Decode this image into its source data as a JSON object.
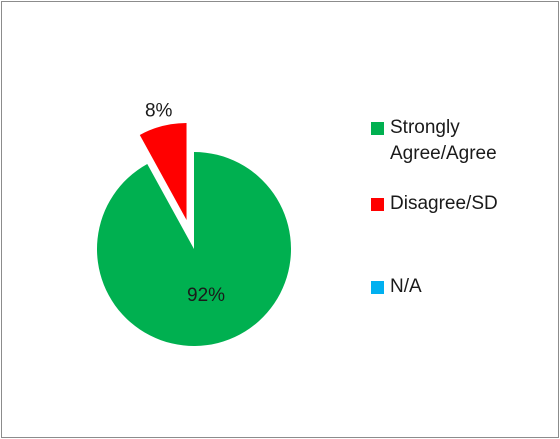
{
  "chart_data": {
    "type": "pie",
    "categories": [
      "Strongly Agree/Agree",
      "Disagree/SD",
      "N/A"
    ],
    "values": [
      92,
      8,
      0
    ],
    "labels": [
      "92%",
      "8%",
      ""
    ],
    "colors": [
      "#00b050",
      "#ff0000",
      "#00b0f0"
    ],
    "exploded": [
      false,
      true,
      false
    ],
    "legend_position": "right",
    "title": ""
  }
}
